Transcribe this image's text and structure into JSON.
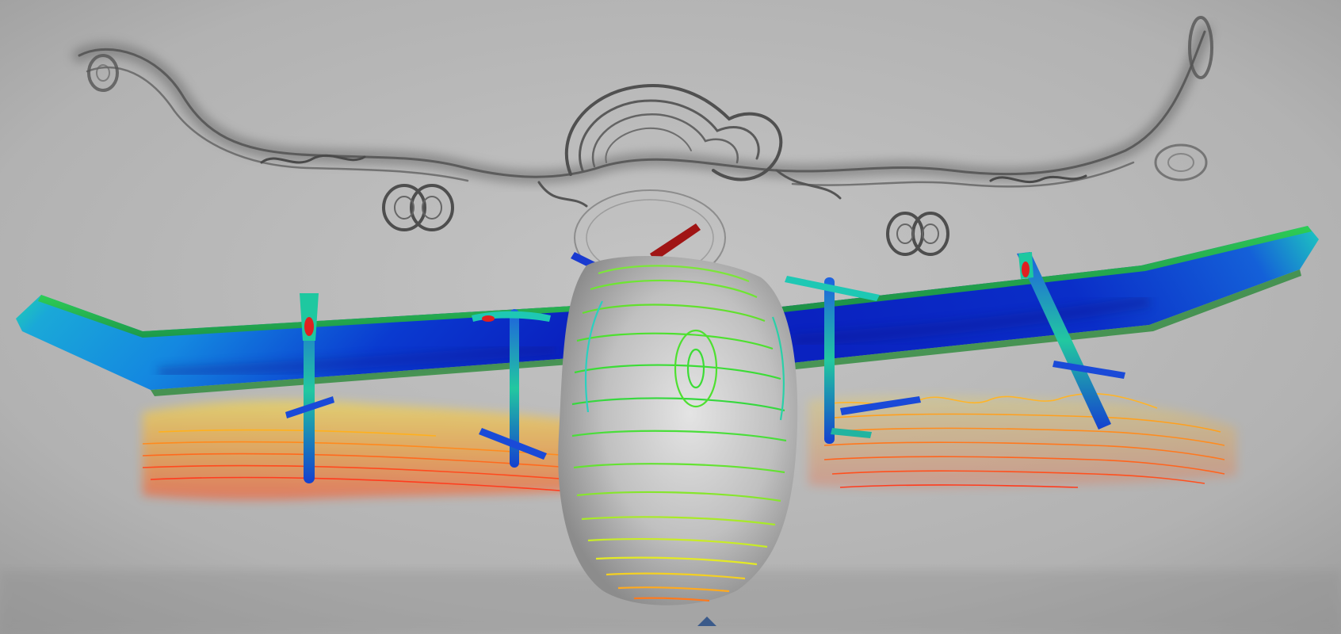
{
  "scene": {
    "subject": "cfd-visualization",
    "colors": {
      "background": "#b6b6b6",
      "wake_dark": "#5a5a5a",
      "wing_blue": "#0a22c8",
      "wing_cyan": "#1ec8d2",
      "wing_green": "#28d24a",
      "contour_green": "#6ee632",
      "contour_yellow": "#f0e628",
      "contour_orange": "#ff9a1e",
      "contour_red": "#ff3c1e",
      "fuselage_gray": "#c8c8c8",
      "blade_red": "#a01414"
    }
  }
}
